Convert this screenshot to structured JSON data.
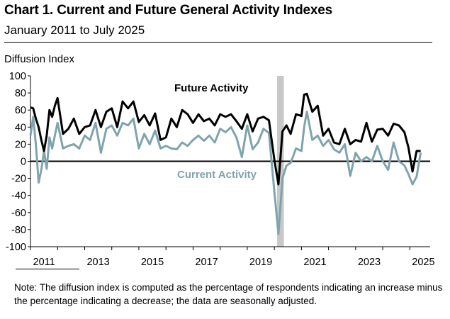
{
  "header": {
    "title": "Chart 1. Current and Future General Activity Indexes",
    "subtitle": "January 2011 to July 2025"
  },
  "note": "Note: The diffusion index is computed as the percentage of respondents indicating an increase minus the percentage indicating a decrease; the data are seasonally adjusted.",
  "colors": {
    "future": "#000000",
    "current": "#7fa4ae",
    "recession": "#c8c8c8"
  },
  "chart_data": {
    "type": "line",
    "title": "Chart 1. Current and Future General Activity Indexes",
    "subtitle": "January 2011 to July 2025",
    "ylabel": "Diffusion Index",
    "xlabel": "",
    "ylim": [
      -100,
      100
    ],
    "yticks": [
      -100,
      -80,
      -60,
      -40,
      -20,
      0,
      20,
      40,
      60,
      80,
      100
    ],
    "xlim": [
      2011.0,
      2025.75
    ],
    "xticks": [
      "2011",
      "2013",
      "2015",
      "2017",
      "2019",
      "2021",
      "2023",
      "2025"
    ],
    "grid": false,
    "recession_shading": [
      2020.1,
      2020.35
    ],
    "annotations": [
      "Future Activity",
      "Current Activity"
    ],
    "series": [
      {
        "name": "Future Activity",
        "x": [
          2011.0,
          2011.1,
          2011.2,
          2011.3,
          2011.4,
          2011.5,
          2011.6,
          2011.7,
          2011.8,
          2011.9,
          2012.0,
          2012.2,
          2012.4,
          2012.6,
          2012.8,
          2013.0,
          2013.2,
          2013.4,
          2013.6,
          2013.8,
          2014.0,
          2014.2,
          2014.4,
          2014.6,
          2014.8,
          2015.0,
          2015.2,
          2015.4,
          2015.6,
          2015.8,
          2016.0,
          2016.2,
          2016.4,
          2016.6,
          2016.8,
          2017.0,
          2017.2,
          2017.4,
          2017.6,
          2017.8,
          2018.0,
          2018.2,
          2018.4,
          2018.6,
          2018.8,
          2019.0,
          2019.2,
          2019.4,
          2019.6,
          2019.8,
          2020.0,
          2020.15,
          2020.3,
          2020.45,
          2020.6,
          2020.8,
          2021.0,
          2021.1,
          2021.2,
          2021.4,
          2021.6,
          2021.8,
          2022.0,
          2022.2,
          2022.4,
          2022.6,
          2022.8,
          2023.0,
          2023.2,
          2023.4,
          2023.6,
          2023.8,
          2024.0,
          2024.2,
          2024.4,
          2024.6,
          2024.8,
          2024.95,
          2025.1,
          2025.25,
          2025.4
        ],
        "values": [
          63,
          62,
          50,
          40,
          25,
          12,
          30,
          60,
          52,
          65,
          74,
          32,
          38,
          50,
          32,
          40,
          42,
          60,
          40,
          58,
          62,
          40,
          70,
          62,
          70,
          46,
          54,
          42,
          56,
          25,
          28,
          50,
          40,
          60,
          55,
          45,
          55,
          47,
          50,
          42,
          55,
          52,
          55,
          47,
          38,
          55,
          35,
          50,
          52,
          48,
          2,
          -27,
          35,
          42,
          32,
          55,
          53,
          78,
          79,
          58,
          65,
          30,
          38,
          22,
          20,
          38,
          20,
          25,
          23,
          45,
          23,
          37,
          38,
          30,
          44,
          42,
          34,
          16,
          -12,
          12,
          12
        ]
      },
      {
        "name": "Current Activity",
        "x": [
          2011.0,
          2011.1,
          2011.2,
          2011.3,
          2011.4,
          2011.5,
          2011.6,
          2011.7,
          2011.8,
          2011.9,
          2012.0,
          2012.2,
          2012.4,
          2012.6,
          2012.8,
          2013.0,
          2013.2,
          2013.4,
          2013.6,
          2013.8,
          2014.0,
          2014.2,
          2014.4,
          2014.6,
          2014.8,
          2015.0,
          2015.2,
          2015.4,
          2015.6,
          2015.8,
          2016.0,
          2016.2,
          2016.4,
          2016.6,
          2016.8,
          2017.0,
          2017.2,
          2017.4,
          2017.6,
          2017.8,
          2018.0,
          2018.2,
          2018.4,
          2018.6,
          2018.8,
          2019.0,
          2019.2,
          2019.4,
          2019.6,
          2019.8,
          2020.0,
          2020.15,
          2020.3,
          2020.45,
          2020.6,
          2020.8,
          2021.0,
          2021.1,
          2021.2,
          2021.4,
          2021.6,
          2021.8,
          2022.0,
          2022.2,
          2022.4,
          2022.6,
          2022.8,
          2023.0,
          2023.2,
          2023.4,
          2023.6,
          2023.8,
          2024.0,
          2024.2,
          2024.4,
          2024.6,
          2024.8,
          2024.95,
          2025.1,
          2025.25,
          2025.4
        ],
        "values": [
          30,
          52,
          20,
          -25,
          -10,
          12,
          -9,
          28,
          15,
          30,
          45,
          15,
          18,
          20,
          15,
          30,
          25,
          45,
          10,
          38,
          42,
          30,
          45,
          42,
          50,
          15,
          32,
          20,
          36,
          15,
          18,
          15,
          14,
          22,
          18,
          25,
          30,
          24,
          30,
          22,
          38,
          34,
          40,
          28,
          5,
          42,
          14,
          22,
          38,
          33,
          -35,
          -85,
          -20,
          -5,
          -2,
          15,
          12,
          40,
          58,
          25,
          30,
          18,
          25,
          14,
          10,
          20,
          -17,
          10,
          0,
          5,
          0,
          18,
          0,
          -10,
          22,
          0,
          -5,
          -15,
          -27,
          -18,
          10
        ]
      }
    ]
  }
}
